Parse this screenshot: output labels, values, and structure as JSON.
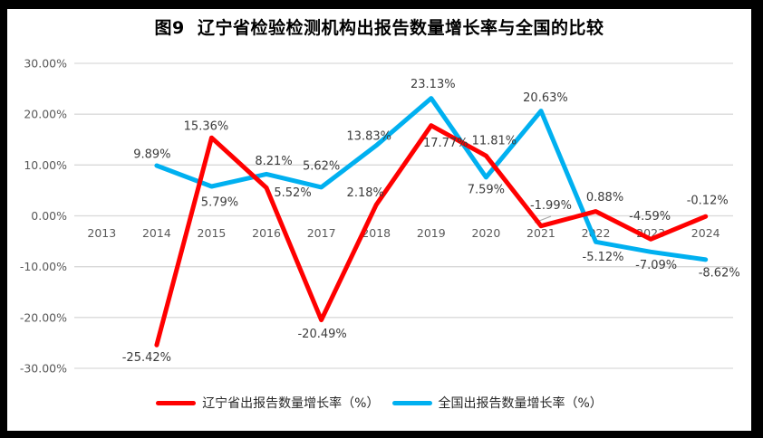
{
  "title": "图9  辽宁省检验检测机构出报告数量增长率与全国的比较",
  "colors": {
    "frame": "#000000",
    "background": "#FFFFFF",
    "gridline": "#D9D9D9",
    "axis_text": "#595959",
    "label_text": "#3B3B3B",
    "leader_line": "#A6A6A6",
    "series_liaoning": "#FF0000",
    "series_national": "#00B0F0"
  },
  "chart_data": {
    "type": "line",
    "title": "图9  辽宁省检验检测机构出报告数量增长率与全国的比较",
    "x": [
      "2013",
      "2014",
      "2015",
      "2016",
      "2017",
      "2018",
      "2019",
      "2020",
      "2021",
      "2022",
      "2023",
      "2024"
    ],
    "series": [
      {
        "name": "辽宁省出报告数量增长率（%）",
        "color": "#FF0000",
        "values": [
          null,
          -25.42,
          15.36,
          5.52,
          -20.49,
          2.18,
          17.77,
          11.81,
          -1.99,
          0.88,
          -4.59,
          -0.12
        ]
      },
      {
        "name": "全国出报告数量增长率（%）",
        "color": "#00B0F0",
        "values": [
          null,
          9.89,
          5.79,
          8.21,
          5.62,
          13.83,
          23.13,
          7.59,
          20.63,
          -5.12,
          -7.09,
          -8.62
        ]
      }
    ],
    "ylim": [
      -30,
      30
    ],
    "ytick_step": 10,
    "ytick_labels": [
      "30.00%",
      "20.00%",
      "10.00%",
      "0.00%",
      "-10.00%",
      "-20.00%",
      "-30.00%"
    ],
    "data_label_suffix": "%",
    "data_label_decimals": 2,
    "grid": true,
    "legend_position": "bottom",
    "data_labels": true
  }
}
